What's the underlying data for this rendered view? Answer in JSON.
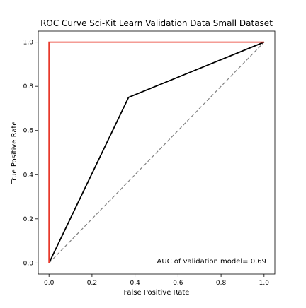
{
  "chart_data": {
    "type": "line",
    "title": "ROC Curve Sci-Kit Learn Validation Data Small Dataset",
    "xlabel": "False Positive Rate",
    "ylabel": "True Positive Rate",
    "xlim": [
      -0.05,
      1.05
    ],
    "ylim": [
      -0.05,
      1.05
    ],
    "x_ticks": [
      0.0,
      0.2,
      0.4,
      0.6,
      0.8,
      1.0
    ],
    "x_tick_labels": [
      "0.0",
      "0.2",
      "0.4",
      "0.6",
      "0.8",
      "1.0"
    ],
    "y_ticks": [
      0.0,
      0.2,
      0.4,
      0.6,
      0.8,
      1.0
    ],
    "y_tick_labels": [
      "0.0",
      "0.2",
      "0.4",
      "0.6",
      "0.8",
      "1.0"
    ],
    "grid": false,
    "annotation": "AUC of validation model= 0.69",
    "series": [
      {
        "style": "solid",
        "color": "#e8392b",
        "x": [
          0.0,
          0.0,
          1.0
        ],
        "y": [
          0.0,
          1.0,
          1.0
        ]
      },
      {
        "style": "solid",
        "color": "#000000",
        "x": [
          0.0,
          0.37,
          1.0
        ],
        "y": [
          0.0,
          0.75,
          1.0
        ]
      },
      {
        "style": "dashed",
        "color": "#808080",
        "x": [
          0.0,
          1.0
        ],
        "y": [
          0.0,
          1.0
        ]
      }
    ]
  }
}
